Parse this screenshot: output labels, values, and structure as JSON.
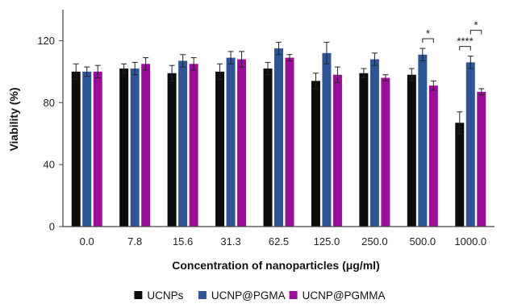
{
  "chart_data": {
    "type": "bar",
    "xlabel": "Concentration of nanoparticles (μg/ml)",
    "ylabel": "Viability (%)",
    "ylim": [
      0,
      140
    ],
    "yticks": [
      0,
      40,
      80,
      120
    ],
    "categories": [
      "0.0",
      "7.8",
      "15.6",
      "31.3",
      "62.5",
      "125.0",
      "250.0",
      "500.0",
      "1000.0"
    ],
    "series": [
      {
        "name": "UCNPs",
        "color": "#0d0d0d",
        "values": [
          100,
          102,
          99,
          100,
          102,
          94,
          99,
          98,
          67
        ],
        "errors": [
          5,
          3,
          5,
          5,
          4,
          5,
          3,
          4,
          7
        ]
      },
      {
        "name": "UCNP@PGMA",
        "color": "#2f5597",
        "values": [
          100,
          102,
          107,
          109,
          115,
          112,
          108,
          111,
          106
        ],
        "errors": [
          3,
          4,
          4,
          4,
          4,
          7,
          4,
          4,
          4
        ]
      },
      {
        "name": "UCNP@PGMMA",
        "color": "#9b0e99",
        "values": [
          100,
          105,
          105,
          108,
          109,
          98,
          96,
          91,
          87
        ],
        "errors": [
          4,
          4,
          4,
          5,
          2,
          5,
          2,
          3,
          2
        ]
      }
    ],
    "significance": [
      {
        "category": "500.0",
        "between": [
          "UCNP@PGMA",
          "UCNP@PGMMA"
        ],
        "label": "*"
      },
      {
        "category": "1000.0",
        "between": [
          "UCNPs",
          "UCNP@PGMA"
        ],
        "label": "****"
      },
      {
        "category": "1000.0",
        "between": [
          "UCNP@PGMA",
          "UCNP@PGMMA"
        ],
        "label": "*"
      }
    ],
    "legend_position": "bottom",
    "grid": false
  }
}
